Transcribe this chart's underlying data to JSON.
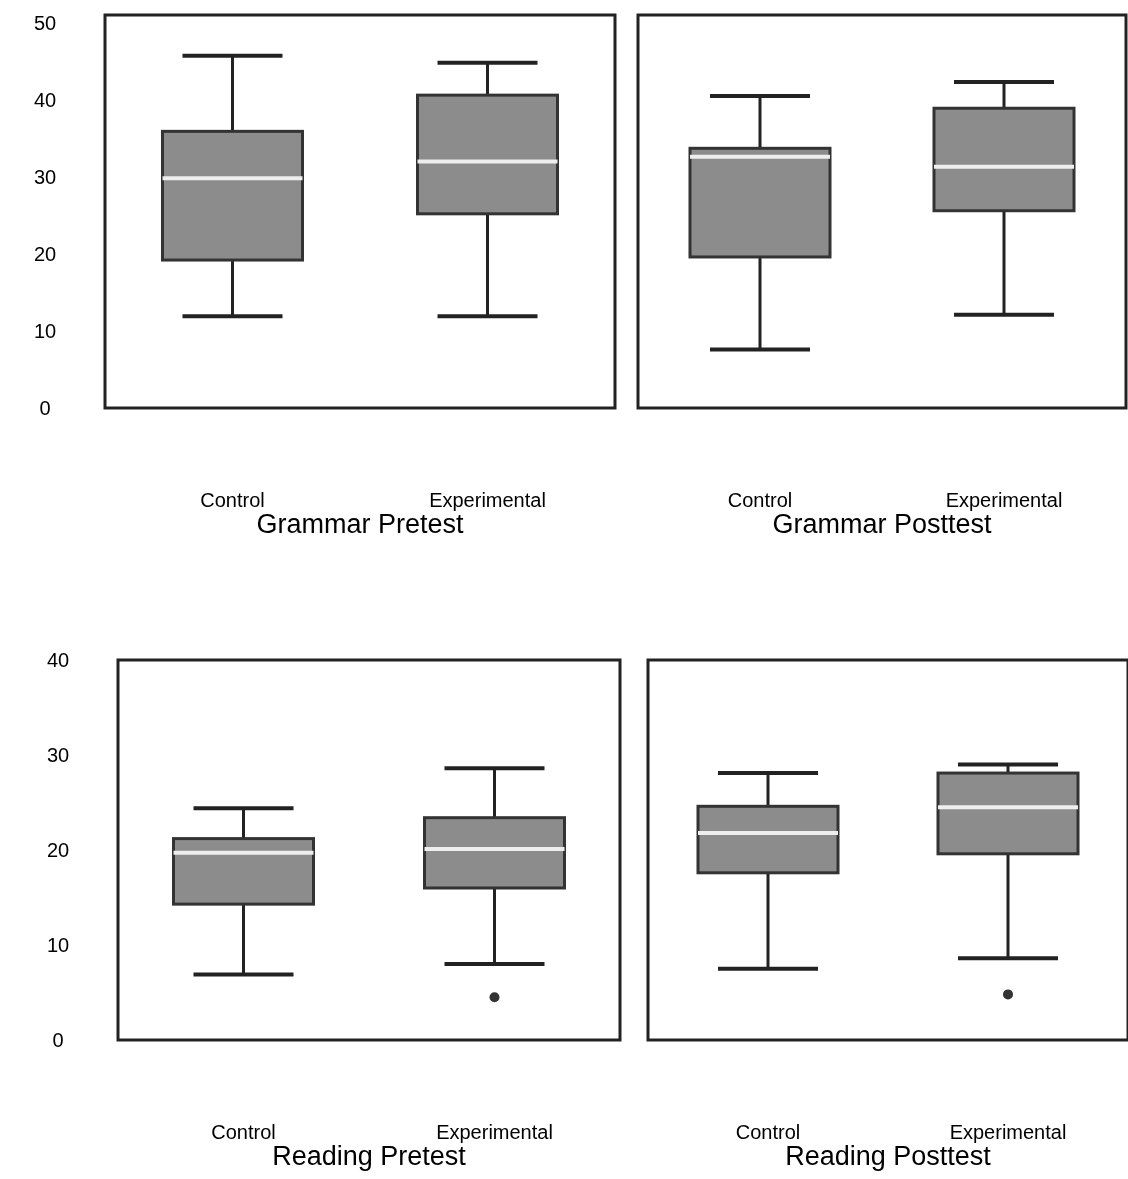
{
  "chart_data": [
    {
      "type": "box",
      "xlabel": "Grammar Pretest",
      "categories": [
        "Control",
        "Experimental"
      ],
      "color": "#8c8c8c",
      "ylim": [
        0,
        51
      ],
      "yticks": [
        0,
        10,
        20,
        30,
        40,
        50
      ],
      "boxes": [
        {
          "low": 11.9,
          "q1": 19.2,
          "median": 29.8,
          "q3": 35.9,
          "high": 45.7
        },
        {
          "low": 11.9,
          "q1": 25.2,
          "median": 32,
          "q3": 40.6,
          "high": 44.8
        }
      ]
    },
    {
      "type": "box",
      "xlabel": "Grammar Posttest",
      "categories": [
        "Control",
        "Experimental"
      ],
      "color": "#8c8c8c",
      "ylim": [
        0,
        51
      ],
      "yticks": [
        0,
        10,
        20,
        30,
        40,
        50
      ],
      "tick_labels": "x",
      "boxes": [
        {
          "low": 7.6,
          "q1": 19.6,
          "median": 32.6,
          "q3": 33.7,
          "high": 40.5
        },
        {
          "low": 12.1,
          "q1": 25.6,
          "median": 31.3,
          "q3": 38.9,
          "high": 42.3
        }
      ]
    },
    {
      "type": "box",
      "xlabel": "Reading Pretest",
      "categories": [
        "Control",
        "Experimental"
      ],
      "color": "#8c8c8c",
      "ylim": [
        0,
        40
      ],
      "yticks": [
        0,
        10,
        20,
        30,
        40
      ],
      "boxes": [
        {
          "low": 6.9,
          "q1": 14.3,
          "median": 19.7,
          "q3": 21.2,
          "high": 24.4
        },
        {
          "low": 8,
          "q1": 16,
          "median": 20.1,
          "q3": 23.4,
          "high": 28.6,
          "outliers": [
            4.5
          ]
        }
      ]
    },
    {
      "type": "box",
      "xlabel": "Reading Posttest",
      "categories": [
        "Control",
        "Experimental"
      ],
      "color": "#8c8c8c",
      "ylim": [
        0,
        40
      ],
      "yticks": [
        0,
        10,
        20,
        30,
        40
      ],
      "tick_labels": "x",
      "boxes": [
        {
          "low": 7.5,
          "q1": 17.6,
          "median": 21.8,
          "q3": 24.6,
          "high": 28.1
        },
        {
          "low": 8.6,
          "q1": 19.6,
          "median": 24.5,
          "q3": 28.1,
          "high": 29,
          "outliers": [
            4.8
          ]
        }
      ]
    }
  ]
}
